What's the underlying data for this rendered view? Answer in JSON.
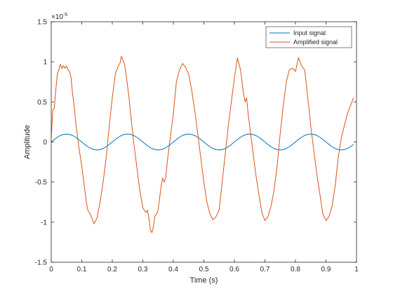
{
  "chart_data": {
    "type": "line",
    "xlabel": "Time (s)",
    "ylabel": "Amplitude",
    "y_exponent": {
      "base": "×10",
      "power": "-5"
    },
    "xlim": [
      0,
      1
    ],
    "ylim": [
      -1.5,
      1.5
    ],
    "xticks": [
      0,
      0.1,
      0.2,
      0.3,
      0.4,
      0.5,
      0.6,
      0.7,
      0.8,
      0.9,
      1
    ],
    "xtick_labels": [
      "0",
      "0.1",
      "0.2",
      "0.3",
      "0.4",
      "0.5",
      "0.6",
      "0.7",
      "0.8",
      "0.9",
      "1"
    ],
    "yticks": [
      -1.5,
      -1,
      -0.5,
      0,
      0.5,
      1,
      1.5
    ],
    "ytick_labels": [
      "-1.5",
      "-1",
      "-0.5",
      "0",
      "0.5",
      "1",
      "1.5"
    ],
    "grid": false,
    "legend_position": "top-right",
    "series": [
      {
        "name": "Input signal",
        "color": "#0072BD",
        "x": [
          0,
          0.01,
          0.02,
          0.03,
          0.04,
          0.05,
          0.06,
          0.07,
          0.08,
          0.09,
          0.1,
          0.11,
          0.12,
          0.13,
          0.14,
          0.15,
          0.16,
          0.17,
          0.18,
          0.19,
          0.2,
          0.21,
          0.22,
          0.23,
          0.24,
          0.25,
          0.26,
          0.27,
          0.28,
          0.29,
          0.3,
          0.31,
          0.32,
          0.33,
          0.34,
          0.35,
          0.36,
          0.37,
          0.38,
          0.39,
          0.4,
          0.41,
          0.42,
          0.43,
          0.44,
          0.45,
          0.46,
          0.47,
          0.48,
          0.49,
          0.5,
          0.51,
          0.52,
          0.53,
          0.54,
          0.55,
          0.56,
          0.57,
          0.58,
          0.59,
          0.6,
          0.61,
          0.62,
          0.63,
          0.64,
          0.65,
          0.66,
          0.67,
          0.68,
          0.69,
          0.7,
          0.71,
          0.72,
          0.73,
          0.74,
          0.75,
          0.76,
          0.77,
          0.78,
          0.79,
          0.8,
          0.81,
          0.82,
          0.83,
          0.84,
          0.85,
          0.86,
          0.87,
          0.88,
          0.89,
          0.9,
          0.91,
          0.92,
          0.93,
          0.94,
          0.95,
          0.96,
          0.97,
          0.98,
          0.99
        ],
        "values": [
          0,
          0.031,
          0.059,
          0.081,
          0.095,
          0.1,
          0.095,
          0.081,
          0.059,
          0.031,
          0,
          -0.031,
          -0.059,
          -0.081,
          -0.095,
          -0.1,
          -0.095,
          -0.081,
          -0.059,
          -0.031,
          0,
          0.031,
          0.059,
          0.081,
          0.095,
          0.1,
          0.095,
          0.081,
          0.059,
          0.031,
          0,
          -0.031,
          -0.059,
          -0.081,
          -0.095,
          -0.1,
          -0.095,
          -0.081,
          -0.059,
          -0.031,
          0,
          0.031,
          0.059,
          0.081,
          0.095,
          0.1,
          0.095,
          0.081,
          0.059,
          0.031,
          0,
          -0.031,
          -0.059,
          -0.081,
          -0.095,
          -0.1,
          -0.095,
          -0.081,
          -0.059,
          -0.031,
          0,
          0.031,
          0.059,
          0.081,
          0.095,
          0.1,
          0.095,
          0.081,
          0.059,
          0.031,
          0,
          -0.031,
          -0.059,
          -0.081,
          -0.095,
          -0.1,
          -0.095,
          -0.081,
          -0.059,
          -0.031,
          0,
          0.031,
          0.059,
          0.081,
          0.095,
          0.1,
          0.095,
          0.081,
          0.059,
          0.031,
          0,
          -0.031,
          -0.059,
          -0.081,
          -0.095,
          -0.1,
          -0.095,
          -0.081,
          -0.059,
          -0.031
        ]
      },
      {
        "name": "Amplified signal",
        "color": "#D95319",
        "x": [
          0,
          0.005,
          0.01,
          0.015,
          0.02,
          0.025,
          0.03,
          0.035,
          0.04,
          0.045,
          0.05,
          0.055,
          0.06,
          0.065,
          0.07,
          0.075,
          0.08,
          0.09,
          0.1,
          0.11,
          0.115,
          0.12,
          0.13,
          0.14,
          0.15,
          0.155,
          0.16,
          0.17,
          0.18,
          0.19,
          0.2,
          0.21,
          0.22,
          0.225,
          0.23,
          0.24,
          0.245,
          0.25,
          0.255,
          0.26,
          0.27,
          0.28,
          0.29,
          0.3,
          0.31,
          0.315,
          0.32,
          0.325,
          0.33,
          0.335,
          0.34,
          0.345,
          0.35,
          0.36,
          0.365,
          0.37,
          0.375,
          0.38,
          0.39,
          0.4,
          0.41,
          0.42,
          0.43,
          0.44,
          0.45,
          0.46,
          0.47,
          0.48,
          0.49,
          0.5,
          0.51,
          0.52,
          0.53,
          0.54,
          0.55,
          0.56,
          0.57,
          0.58,
          0.59,
          0.6,
          0.61,
          0.62,
          0.63,
          0.635,
          0.64,
          0.645,
          0.65,
          0.66,
          0.67,
          0.68,
          0.69,
          0.7,
          0.71,
          0.72,
          0.73,
          0.74,
          0.75,
          0.76,
          0.77,
          0.78,
          0.79,
          0.8,
          0.81,
          0.82,
          0.83,
          0.835,
          0.84,
          0.845,
          0.85,
          0.86,
          0.87,
          0.88,
          0.89,
          0.9,
          0.91,
          0.92,
          0.93,
          0.94,
          0.95,
          0.96,
          0.97,
          0.98,
          0.99
        ],
        "values": [
          0.05,
          0.4,
          0.42,
          0.65,
          0.85,
          0.9,
          0.97,
          0.92,
          0.95,
          0.92,
          0.95,
          0.9,
          0.88,
          0.8,
          0.6,
          0.45,
          0.25,
          -0.05,
          -0.3,
          -0.6,
          -0.75,
          -0.85,
          -0.92,
          -1.02,
          -0.95,
          -0.85,
          -0.75,
          -0.5,
          -0.2,
          0.2,
          0.55,
          0.85,
          0.95,
          0.98,
          1.07,
          0.97,
          0.85,
          0.7,
          0.55,
          0.35,
          0.0,
          -0.3,
          -0.6,
          -0.82,
          -0.88,
          -0.85,
          -0.95,
          -1.1,
          -1.13,
          -1.05,
          -0.92,
          -0.9,
          -0.85,
          -0.55,
          -0.45,
          -0.5,
          -0.45,
          -0.25,
          0.05,
          0.35,
          0.75,
          0.9,
          0.98,
          0.93,
          0.85,
          0.65,
          0.4,
          0.1,
          -0.2,
          -0.5,
          -0.75,
          -0.9,
          -0.97,
          -0.93,
          -0.85,
          -0.5,
          -0.15,
          0.2,
          0.5,
          0.8,
          1.05,
          0.9,
          0.6,
          0.5,
          0.55,
          0.35,
          0.2,
          -0.1,
          -0.4,
          -0.65,
          -0.88,
          -0.98,
          -0.93,
          -0.8,
          -0.6,
          -0.3,
          0.1,
          0.45,
          0.75,
          0.9,
          0.92,
          0.88,
          1.05,
          0.95,
          0.9,
          0.75,
          0.55,
          0.4,
          0.2,
          -0.1,
          -0.4,
          -0.65,
          -0.9,
          -0.98,
          -0.93,
          -0.8,
          -0.55,
          -0.2,
          0.05,
          0.2,
          0.35,
          0.45,
          0.55
        ]
      }
    ]
  }
}
